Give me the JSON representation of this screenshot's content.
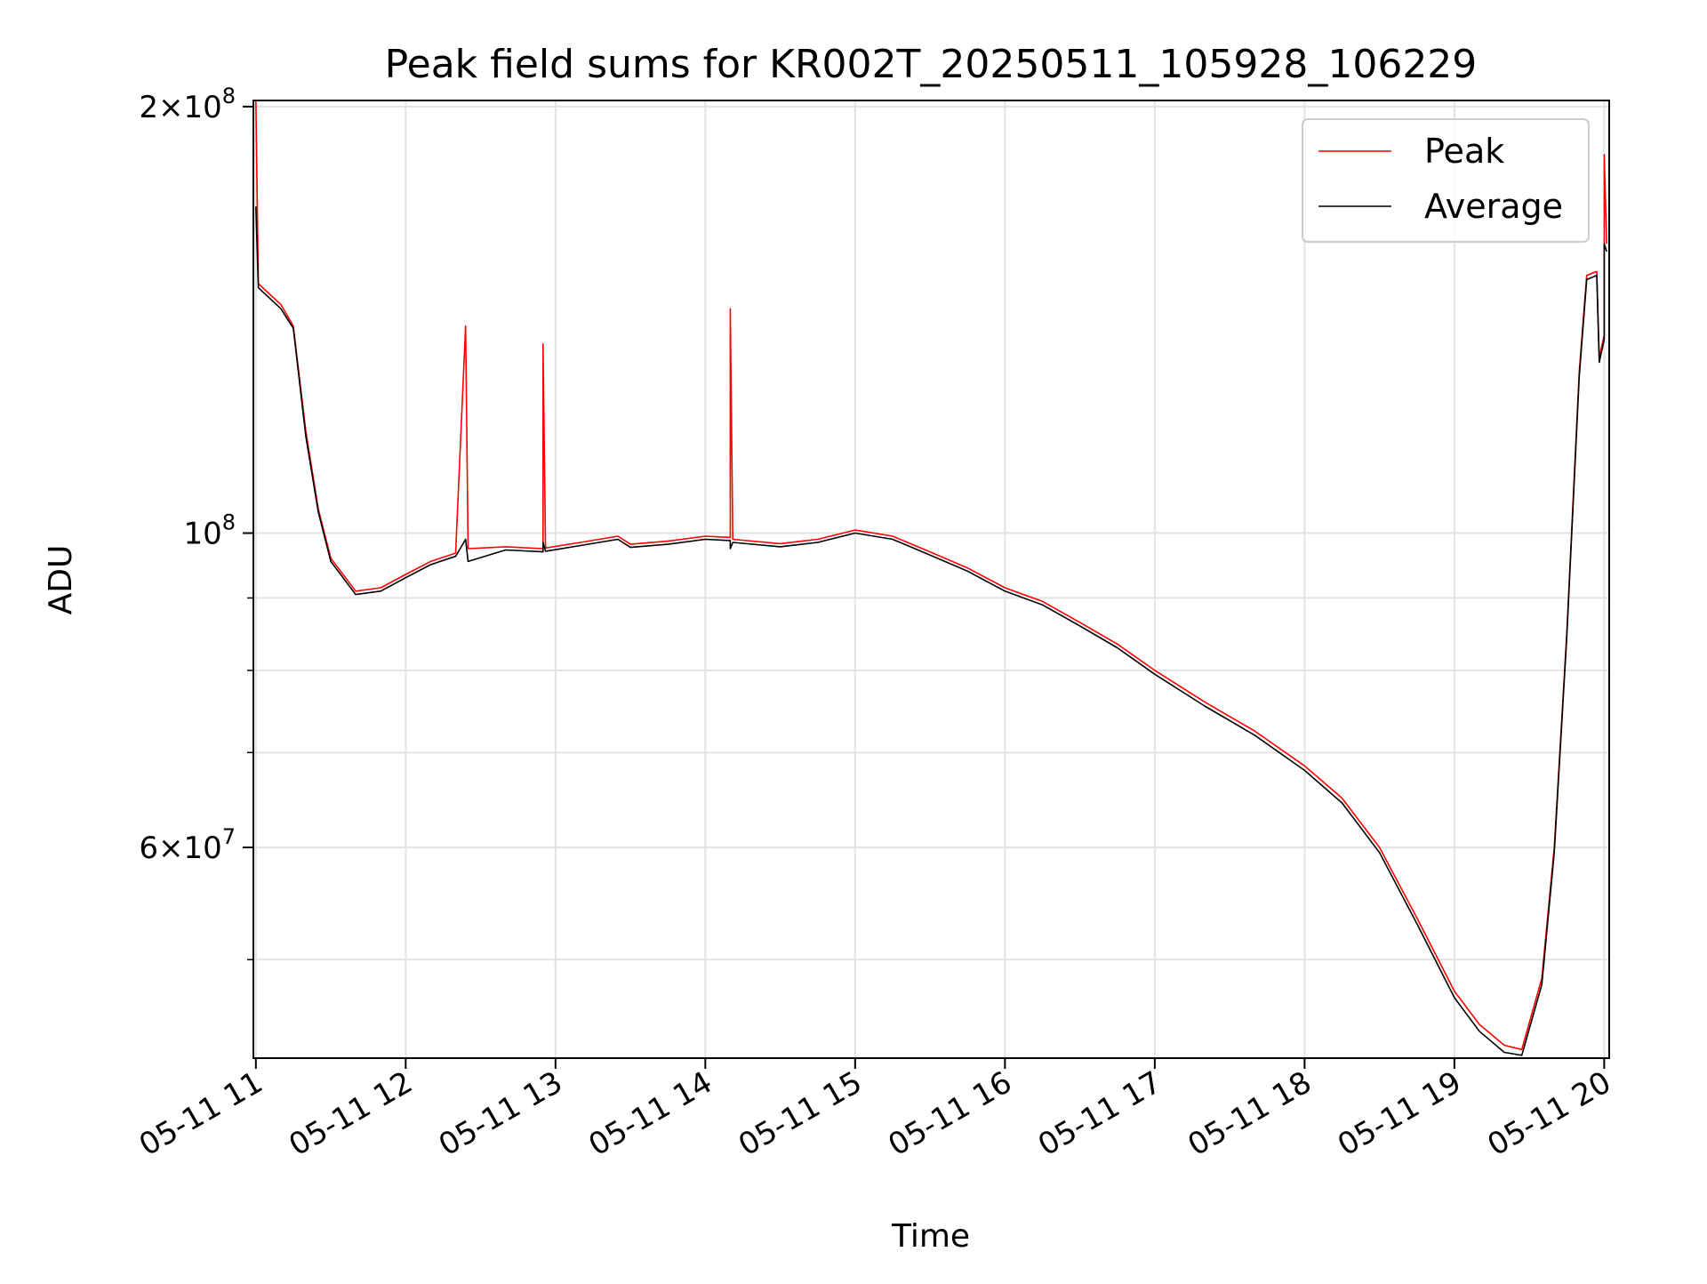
{
  "chart_data": {
    "type": "line",
    "title": "Peak field sums for KR002T_20250511_105928_106229",
    "xlabel": "Time",
    "ylabel": "ADU",
    "y_scale": "log",
    "xlim": [
      "2025-05-11 10:59",
      "2025-05-11 20:02"
    ],
    "ylim": [
      42600000,
      202000000
    ],
    "x_ticks": [
      "05-11 11",
      "05-11 12",
      "05-11 13",
      "05-11 14",
      "05-11 15",
      "05-11 16",
      "05-11 17",
      "05-11 18",
      "05-11 19",
      "05-11 20"
    ],
    "y_ticks": [
      {
        "value": 200000000,
        "mant": "2",
        "exp": "8"
      },
      {
        "value": 100000000,
        "mant": "",
        "exp": "8"
      },
      {
        "value": 60000000,
        "mant": "6",
        "exp": "7"
      }
    ],
    "y_minor_ticks": [
      50000000,
      70000000,
      80000000,
      90000000
    ],
    "grid": true,
    "legend_position": "top-right",
    "series": [
      {
        "name": "Peak",
        "color": "#ff0000",
        "points": [
          [
            "05-11 11:00",
            202000000
          ],
          [
            "05-11 11:01",
            150000000
          ],
          [
            "05-11 11:10",
            145000000
          ],
          [
            "05-11 11:15",
            140000000
          ],
          [
            "05-11 11:20",
            118000000
          ],
          [
            "05-11 11:25",
            104000000
          ],
          [
            "05-11 11:30",
            96000000
          ],
          [
            "05-11 11:40",
            91000000
          ],
          [
            "05-11 11:50",
            91500000
          ],
          [
            "05-11 12:00",
            93500000
          ],
          [
            "05-11 12:10",
            95500000
          ],
          [
            "05-11 12:20",
            96800000
          ],
          [
            "05-11 12:24",
            140000000
          ],
          [
            "05-11 12:25",
            97500000
          ],
          [
            "05-11 12:40",
            97800000
          ],
          [
            "05-11 12:55",
            97500000
          ],
          [
            "05-11 12:55",
            136000000
          ],
          [
            "05-11 12:56",
            97600000
          ],
          [
            "05-11 13:10",
            98500000
          ],
          [
            "05-11 13:25",
            99500000
          ],
          [
            "05-11 13:30",
            98200000
          ],
          [
            "05-11 13:45",
            98700000
          ],
          [
            "05-11 14:00",
            99500000
          ],
          [
            "05-11 14:10",
            99300000
          ],
          [
            "05-11 14:10",
            144000000
          ],
          [
            "05-11 14:11",
            99000000
          ],
          [
            "05-11 14:30",
            98300000
          ],
          [
            "05-11 14:45",
            99000000
          ],
          [
            "05-11 15:00",
            100500000
          ],
          [
            "05-11 15:15",
            99500000
          ],
          [
            "05-11 15:30",
            97000000
          ],
          [
            "05-11 15:45",
            94500000
          ],
          [
            "05-11 16:00",
            91500000
          ],
          [
            "05-11 16:15",
            89500000
          ],
          [
            "05-11 16:30",
            86500000
          ],
          [
            "05-11 16:45",
            83500000
          ],
          [
            "05-11 17:00",
            80000000
          ],
          [
            "05-11 17:20",
            76000000
          ],
          [
            "05-11 17:40",
            72500000
          ],
          [
            "05-11 18:00",
            68500000
          ],
          [
            "05-11 18:15",
            65000000
          ],
          [
            "05-11 18:30",
            60000000
          ],
          [
            "05-11 18:45",
            53500000
          ],
          [
            "05-11 19:00",
            47500000
          ],
          [
            "05-11 19:10",
            45000000
          ],
          [
            "05-11 19:20",
            43500000
          ],
          [
            "05-11 19:27",
            43200000
          ],
          [
            "05-11 19:35",
            48500000
          ],
          [
            "05-11 19:40",
            60000000
          ],
          [
            "05-11 19:45",
            85000000
          ],
          [
            "05-11 19:50",
            130000000
          ],
          [
            "05-11 19:53",
            152000000
          ],
          [
            "05-11 19:57",
            153000000
          ],
          [
            "05-11 19:58",
            133000000
          ],
          [
            "05-11 20:00",
            138000000
          ],
          [
            "05-11 20:00",
            185000000
          ],
          [
            "05-11 20:01",
            160000000
          ]
        ]
      },
      {
        "name": "Average",
        "color": "#000000",
        "points": [
          [
            "05-11 11:00",
            170000000
          ],
          [
            "05-11 11:01",
            149000000
          ],
          [
            "05-11 11:10",
            144000000
          ],
          [
            "05-11 11:15",
            139500000
          ],
          [
            "05-11 11:20",
            117000000
          ],
          [
            "05-11 11:25",
            103500000
          ],
          [
            "05-11 11:30",
            95500000
          ],
          [
            "05-11 11:40",
            90500000
          ],
          [
            "05-11 11:50",
            91000000
          ],
          [
            "05-11 12:00",
            93000000
          ],
          [
            "05-11 12:10",
            95000000
          ],
          [
            "05-11 12:20",
            96300000
          ],
          [
            "05-11 12:24",
            99000000
          ],
          [
            "05-11 12:25",
            95500000
          ],
          [
            "05-11 12:40",
            97300000
          ],
          [
            "05-11 12:55",
            97000000
          ],
          [
            "05-11 12:55",
            98500000
          ],
          [
            "05-11 12:56",
            97100000
          ],
          [
            "05-11 13:10",
            98000000
          ],
          [
            "05-11 13:25",
            99000000
          ],
          [
            "05-11 13:30",
            97700000
          ],
          [
            "05-11 13:45",
            98200000
          ],
          [
            "05-11 14:00",
            99000000
          ],
          [
            "05-11 14:10",
            98800000
          ],
          [
            "05-11 14:10",
            97500000
          ],
          [
            "05-11 14:11",
            98500000
          ],
          [
            "05-11 14:30",
            97800000
          ],
          [
            "05-11 14:45",
            98500000
          ],
          [
            "05-11 15:00",
            100000000
          ],
          [
            "05-11 15:15",
            99000000
          ],
          [
            "05-11 15:30",
            96500000
          ],
          [
            "05-11 15:45",
            94000000
          ],
          [
            "05-11 16:00",
            91000000
          ],
          [
            "05-11 16:15",
            89000000
          ],
          [
            "05-11 16:30",
            86000000
          ],
          [
            "05-11 16:45",
            83000000
          ],
          [
            "05-11 17:00",
            79500000
          ],
          [
            "05-11 17:20",
            75500000
          ],
          [
            "05-11 17:40",
            72000000
          ],
          [
            "05-11 18:00",
            68000000
          ],
          [
            "05-11 18:15",
            64500000
          ],
          [
            "05-11 18:30",
            59500000
          ],
          [
            "05-11 18:45",
            53000000
          ],
          [
            "05-11 19:00",
            47000000
          ],
          [
            "05-11 19:10",
            44500000
          ],
          [
            "05-11 19:20",
            43000000
          ],
          [
            "05-11 19:27",
            42800000
          ],
          [
            "05-11 19:35",
            48000000
          ],
          [
            "05-11 19:40",
            59500000
          ],
          [
            "05-11 19:45",
            84500000
          ],
          [
            "05-11 19:50",
            129000000
          ],
          [
            "05-11 19:53",
            151000000
          ],
          [
            "05-11 19:57",
            152000000
          ],
          [
            "05-11 19:58",
            132000000
          ],
          [
            "05-11 20:00",
            137000000
          ],
          [
            "05-11 20:00",
            160000000
          ],
          [
            "05-11 20:01",
            158000000
          ]
        ]
      }
    ]
  }
}
